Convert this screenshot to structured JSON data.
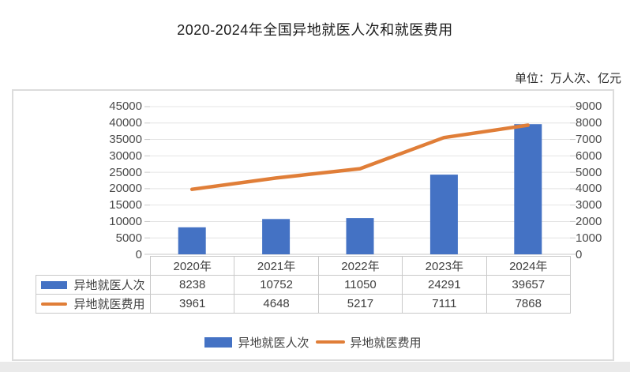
{
  "title": "2020-2024年全国异地就医人次和就医费用",
  "unit_label": "单位：万人次、亿元",
  "colors": {
    "bar": "#4472C4",
    "line": "#E07E38",
    "grid": "#E4E4E4",
    "axis_line": "#C8C8C8",
    "table_border": "#C9C9C9",
    "text": "#404040",
    "axis_text": "#4A4A4A"
  },
  "chart_data": {
    "type": "bar",
    "subtype": "combo-bar-line",
    "title": "2020-2024年全国异地就医人次和就医费用",
    "unit": "单位：万人次、亿元",
    "categories": [
      "2020年",
      "2021年",
      "2022年",
      "2023年",
      "2024年"
    ],
    "series": [
      {
        "name": "异地就医人次",
        "chart": "bar",
        "axis": "left",
        "color": "#4472C4",
        "values": [
          8238,
          10752,
          11050,
          24291,
          39657
        ]
      },
      {
        "name": "异地就医费用",
        "chart": "line",
        "axis": "right",
        "color": "#E07E38",
        "values": [
          3961,
          4648,
          5217,
          7111,
          7868
        ]
      }
    ],
    "left_axis": {
      "min": 0,
      "max": 45000,
      "step": 5000
    },
    "right_axis": {
      "min": 0,
      "max": 9000,
      "step": 1000
    },
    "grid": true,
    "legend_position": "bottom",
    "data_table_shown": true
  }
}
